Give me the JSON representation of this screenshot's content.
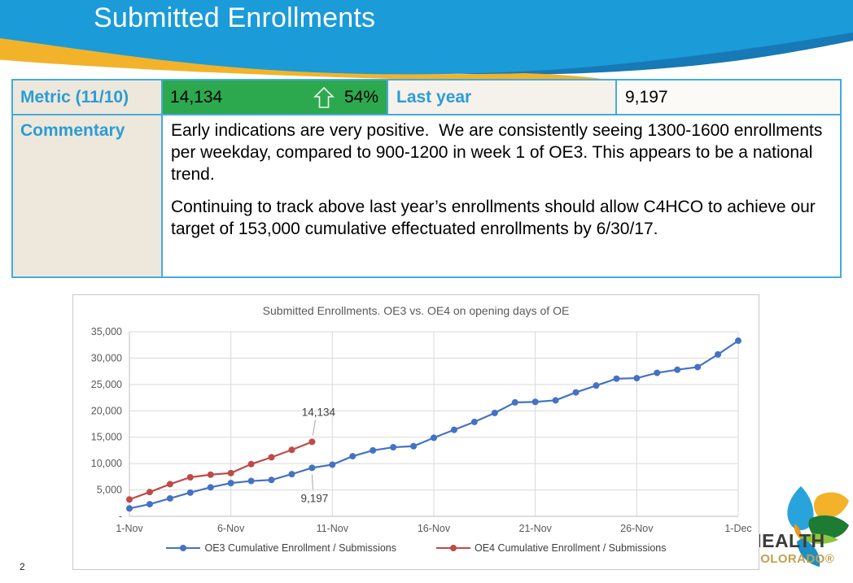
{
  "slide": {
    "title": "Submitted Enrollments",
    "page_number": "2"
  },
  "metric_table": {
    "metric_label": "Metric (11/10)",
    "metric_value": "14,134",
    "metric_change_pct": "54%",
    "metric_change_direction": "up",
    "last_year_label": "Last year",
    "last_year_value": "9,197",
    "commentary_label": "Commentary",
    "commentary_paragraphs": [
      "Early indications are very positive.  We are consistently seeing 1300-1600 enrollments per weekday, compared to 900-1200 in week 1 of OE3. This appears to be a national trend.",
      "Continuing to track above last year’s enrollments should allow C4HCO to achieve our target of 153,000 cumulative effectuated enrollments by 6/30/17."
    ]
  },
  "chart_data": {
    "type": "line",
    "title": "Submitted Enrollments. OE3 vs. OE4 on opening days of OE",
    "x_dates": [
      "1-Nov",
      "2-Nov",
      "3-Nov",
      "4-Nov",
      "5-Nov",
      "6-Nov",
      "7-Nov",
      "8-Nov",
      "9-Nov",
      "10-Nov",
      "11-Nov",
      "12-Nov",
      "13-Nov",
      "14-Nov",
      "15-Nov",
      "16-Nov",
      "17-Nov",
      "18-Nov",
      "19-Nov",
      "20-Nov",
      "21-Nov",
      "22-Nov",
      "23-Nov",
      "24-Nov",
      "25-Nov",
      "26-Nov",
      "27-Nov",
      "28-Nov",
      "29-Nov",
      "30-Nov",
      "1-Dec"
    ],
    "x_tick_indices": [
      0,
      5,
      10,
      15,
      20,
      25,
      30
    ],
    "x_tick_labels": [
      "1-Nov",
      "6-Nov",
      "11-Nov",
      "16-Nov",
      "21-Nov",
      "26-Nov",
      "1-Dec"
    ],
    "y_tick_labels": [
      "-",
      "5,000",
      "10,000",
      "15,000",
      "20,000",
      "25,000",
      "30,000",
      "35,000"
    ],
    "y_tick_step": 5000,
    "ylim": [
      0,
      35000
    ],
    "grid": true,
    "legend_position": "bottom",
    "series": [
      {
        "name": "OE3 Cumulative Enrollment / Submissions",
        "color": "#4472C4",
        "values": [
          1500,
          2300,
          3400,
          4500,
          5500,
          6300,
          6700,
          6900,
          8000,
          9197,
          9800,
          11400,
          12500,
          13100,
          13300,
          14900,
          16400,
          17900,
          19600,
          21600,
          21700,
          22000,
          23500,
          24800,
          26100,
          26200,
          27200,
          27800,
          28300,
          30700,
          33300
        ]
      },
      {
        "name": "OE4 Cumulative Enrollment / Submissions",
        "color": "#BE4B48",
        "values": [
          3200,
          4600,
          6100,
          7400,
          7900,
          8200,
          9900,
          11200,
          12600,
          14134
        ]
      }
    ],
    "annotations": [
      {
        "text": "14,134",
        "series_index": 1,
        "point_index": 9,
        "placement": "above"
      },
      {
        "text": "9,197",
        "series_index": 0,
        "point_index": 9,
        "placement": "below"
      }
    ]
  },
  "logo": {
    "health_text": "HEALTH",
    "colorado_text": "COLORADO®"
  },
  "colors": {
    "header_blue": "#1B9BD8",
    "header_dark_blue": "#1779B6",
    "gold": "#F2B32A",
    "green": "#2CA94F",
    "table_border": "#45AADF",
    "label_blue": "#2B9CD8",
    "label_bg": "#EDE8DB"
  }
}
